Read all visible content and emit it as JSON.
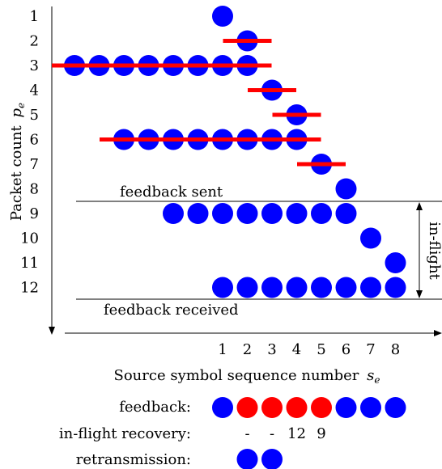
{
  "diagram": {
    "y_axis": {
      "label": "Packet count",
      "symbol": "p",
      "subscript": "e",
      "ticks": [
        "1",
        "2",
        "3",
        "4",
        "5",
        "6",
        "7",
        "8",
        "9",
        "10",
        "11",
        "12"
      ]
    },
    "x_axis": {
      "label": "Source symbol sequence number",
      "symbol": "s",
      "subscript": "e",
      "ticks": [
        "1",
        "2",
        "3",
        "4",
        "5",
        "6",
        "7",
        "8"
      ]
    },
    "rows": [
      {
        "packet": 1,
        "symbols": [
          1
        ],
        "red_bar": null
      },
      {
        "packet": 2,
        "symbols": [
          2
        ],
        "red_bar": [
          2,
          2
        ]
      },
      {
        "packet": 3,
        "symbols": [
          -5,
          -4,
          -3,
          -2,
          -1,
          0,
          1,
          2
        ],
        "red_bar": [
          -5,
          2
        ]
      },
      {
        "packet": 4,
        "symbols": [
          3
        ],
        "red_bar": [
          3,
          3
        ]
      },
      {
        "packet": 5,
        "symbols": [
          4
        ],
        "red_bar": [
          4,
          4
        ]
      },
      {
        "packet": 6,
        "symbols": [
          -3,
          -2,
          -1,
          0,
          1,
          2,
          3,
          4
        ],
        "red_bar": [
          -3,
          4
        ]
      },
      {
        "packet": 7,
        "symbols": [
          5
        ],
        "red_bar": [
          5,
          5
        ]
      },
      {
        "packet": 8,
        "symbols": [
          6
        ],
        "red_bar": null
      },
      {
        "packet": 9,
        "symbols": [
          -1,
          0,
          1,
          2,
          3,
          4,
          5,
          6
        ],
        "red_bar": null
      },
      {
        "packet": 10,
        "symbols": [
          7
        ],
        "red_bar": null
      },
      {
        "packet": 11,
        "symbols": [
          8
        ],
        "red_bar": null
      },
      {
        "packet": 12,
        "symbols": [
          1,
          2,
          3,
          4,
          5,
          6,
          7,
          8
        ],
        "red_bar": null
      }
    ],
    "annotations": {
      "feedback_sent": "feedback sent",
      "feedback_received": "feedback received",
      "in_flight": "in-flight"
    },
    "legend": {
      "feedback_label": "feedback:",
      "feedback_colors": [
        "blue",
        "red",
        "red",
        "red",
        "red",
        "blue",
        "blue",
        "blue"
      ],
      "recovery_label": "in-flight recovery:",
      "recovery_values": [
        "",
        "-",
        "-",
        "12",
        "9",
        "",
        "",
        ""
      ],
      "retransmission_label": "retransmission:",
      "retransmission_count": 2
    },
    "colors": {
      "dot": "#0000ff",
      "lost": "#ff0000",
      "bar": "#ff0000",
      "line": "#000000"
    }
  }
}
